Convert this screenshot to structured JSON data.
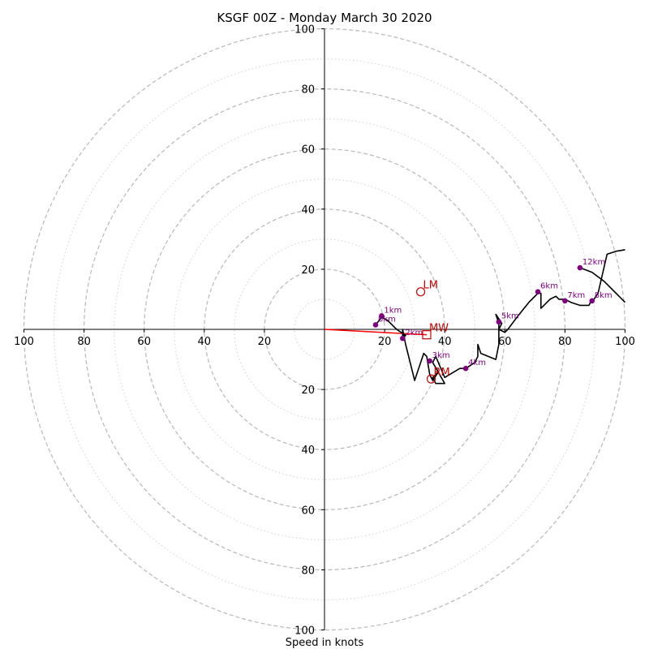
{
  "chart_data": {
    "type": "hodograph",
    "title": "KSGF 00Z - Monday March 30 2020",
    "xlabel": "Speed in knots",
    "axis_range": [
      -100,
      100
    ],
    "ring_major": [
      20,
      40,
      60,
      80,
      100
    ],
    "ring_minor": [
      10,
      30,
      50,
      70,
      90
    ],
    "x_ticks": [
      {
        "value": -100,
        "label": "100"
      },
      {
        "value": -80,
        "label": "80"
      },
      {
        "value": -60,
        "label": "60"
      },
      {
        "value": -40,
        "label": "40"
      },
      {
        "value": -20,
        "label": "20"
      },
      {
        "value": 20,
        "label": "20"
      },
      {
        "value": 40,
        "label": "40"
      },
      {
        "value": 60,
        "label": "60"
      },
      {
        "value": 80,
        "label": "80"
      },
      {
        "value": 100,
        "label": "100"
      }
    ],
    "y_ticks": [
      {
        "value": 100,
        "label": "100"
      },
      {
        "value": 80,
        "label": "80"
      },
      {
        "value": 60,
        "label": "60"
      },
      {
        "value": 40,
        "label": "40"
      },
      {
        "value": 20,
        "label": "20"
      },
      {
        "value": -20,
        "label": "20"
      },
      {
        "value": -40,
        "label": "40"
      },
      {
        "value": -60,
        "label": "60"
      },
      {
        "value": -80,
        "label": "80"
      },
      {
        "value": -100,
        "label": "100"
      }
    ],
    "trace": [
      [
        17,
        1.5
      ],
      [
        19,
        4
      ],
      [
        21,
        3
      ],
      [
        24,
        0
      ],
      [
        27,
        -2
      ],
      [
        26,
        -3
      ],
      [
        26,
        0
      ],
      [
        27,
        -5
      ],
      [
        30,
        -17
      ],
      [
        33,
        -8
      ],
      [
        34,
        -9
      ],
      [
        35,
        -15
      ],
      [
        36,
        -17
      ],
      [
        38,
        -14
      ],
      [
        36,
        -16
      ],
      [
        37,
        -18
      ],
      [
        40,
        -18
      ],
      [
        36,
        -11
      ],
      [
        37,
        -9
      ],
      [
        40,
        -16
      ],
      [
        45,
        -13
      ],
      [
        47,
        -13
      ],
      [
        50,
        -11
      ],
      [
        51,
        -9
      ],
      [
        51,
        -5
      ],
      [
        52,
        -8
      ],
      [
        57,
        -10
      ],
      [
        58,
        -5
      ],
      [
        58,
        2
      ],
      [
        57,
        5
      ],
      [
        59,
        2
      ],
      [
        58,
        0
      ],
      [
        60,
        -1
      ],
      [
        61,
        0
      ],
      [
        64,
        4
      ],
      [
        68,
        9
      ],
      [
        71,
        12
      ],
      [
        72,
        12
      ],
      [
        72,
        7
      ],
      [
        73,
        8
      ],
      [
        75,
        10
      ],
      [
        77,
        11
      ],
      [
        78,
        10
      ],
      [
        80,
        10
      ],
      [
        82,
        9
      ],
      [
        85,
        8
      ],
      [
        88,
        8
      ],
      [
        89,
        10
      ],
      [
        89,
        9
      ],
      [
        91,
        12
      ],
      [
        94,
        25
      ],
      [
        97,
        26
      ],
      [
        100,
        26.5
      ]
    ],
    "trace_upper": [
      [
        85,
        20.5
      ],
      [
        89,
        19
      ],
      [
        93,
        16
      ],
      [
        97,
        12
      ],
      [
        100,
        9
      ]
    ],
    "height_markers": [
      {
        "label": "1km",
        "u": 19,
        "v": 4.5
      },
      {
        "label": "2km",
        "u": 26,
        "v": -3
      },
      {
        "label": "3km",
        "u": 35,
        "v": -10.5
      },
      {
        "label": "4km",
        "u": 47,
        "v": -13
      },
      {
        "label": "5km",
        "u": 58,
        "v": 2.5
      },
      {
        "label": "6km",
        "u": 71,
        "v": 12.5
      },
      {
        "label": "7km",
        "u": 80,
        "v": 9.5
      },
      {
        "label": "8km",
        "u": 89,
        "v": 9.5
      },
      {
        "label": "12km",
        "u": 85,
        "v": 20.5
      },
      {
        "label": "0km",
        "u": 17,
        "v": 1.5
      }
    ],
    "storm_markers": [
      {
        "label": "LM",
        "u": 32,
        "v": 12.5,
        "shape": "circle"
      },
      {
        "label": "MW",
        "u": 34,
        "v": -1.8,
        "shape": "square"
      },
      {
        "label": "RM",
        "u": 35.5,
        "v": -16.5,
        "shape": "circle"
      }
    ],
    "shear_vector": [
      [
        0,
        0
      ],
      [
        34,
        -1.8
      ]
    ],
    "colors": {
      "trace": "#000000",
      "markers": "#800080",
      "storm": "#cc0000",
      "ring_major": "#b8b8b8",
      "ring_minor": "#cfcfcf"
    }
  }
}
